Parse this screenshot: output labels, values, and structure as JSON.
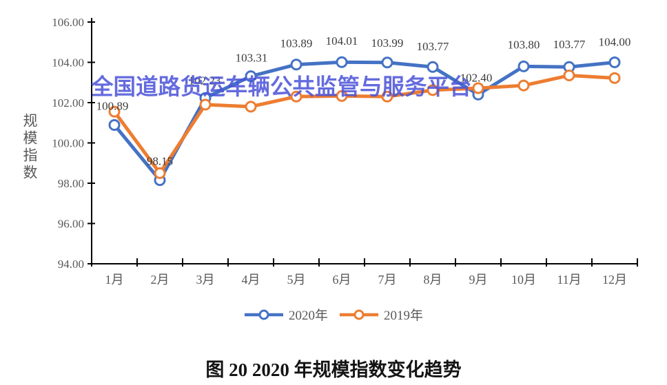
{
  "chart_data": {
    "type": "line",
    "title": "图 20 2020 年规模指数变化趋势",
    "ylabel": "规模指数",
    "watermark": "全国道路货运车辆公共监管与服务平台",
    "x_categories": [
      "1月",
      "2月",
      "3月",
      "4月",
      "5月",
      "6月",
      "7月",
      "8月",
      "9月",
      "10月",
      "11月",
      "12月"
    ],
    "ylim": [
      94,
      106
    ],
    "ytick_step": 2,
    "ytick_labels": [
      "94.00",
      "96.00",
      "98.00",
      "100.00",
      "102.00",
      "104.00",
      "106.00"
    ],
    "grid": false,
    "legend_position": "bottom-center",
    "series": [
      {
        "name": "2020年",
        "color": "#4472C4",
        "values": [
          100.89,
          98.15,
          102.23,
          103.31,
          103.89,
          104.01,
          103.99,
          103.77,
          102.4,
          103.8,
          103.77,
          104.0
        ],
        "data_labels": [
          "100.89",
          "98.15",
          "102.23",
          "103.31",
          "103.89",
          "104.01",
          "103.99",
          "103.77",
          "102.40",
          "103.80",
          "103.77",
          "104.00"
        ],
        "show_labels": true
      },
      {
        "name": "2019年",
        "color": "#ED7D31",
        "values": [
          101.55,
          98.5,
          101.9,
          101.8,
          102.3,
          102.33,
          102.3,
          102.62,
          102.72,
          102.85,
          103.35,
          103.22
        ],
        "show_labels": false
      }
    ],
    "colors": {
      "axis": "#000000",
      "tick_label": "#595959",
      "data_label": "#3a3a3a",
      "watermark": "#4A52D9",
      "series_2020": "#4472C4",
      "series_2019": "#ED7D31"
    }
  }
}
